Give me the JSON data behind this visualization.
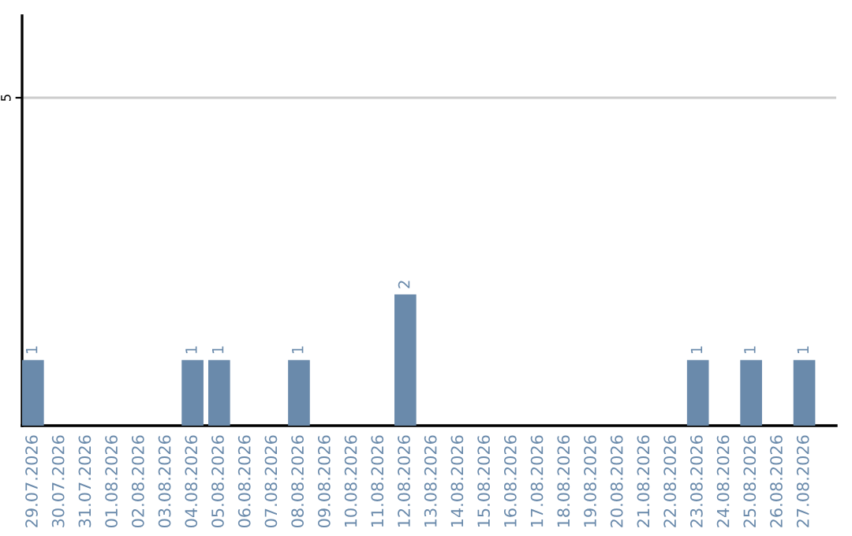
{
  "chart_data": {
    "type": "bar",
    "categories": [
      "29.07.2026",
      "30.07.2026",
      "31.07.2026",
      "01.08.2026",
      "02.08.2026",
      "03.08.2026",
      "04.08.2026",
      "05.08.2026",
      "06.08.2026",
      "07.08.2026",
      "08.08.2026",
      "09.08.2026",
      "10.08.2026",
      "11.08.2026",
      "12.08.2026",
      "13.08.2026",
      "14.08.2026",
      "15.08.2026",
      "16.08.2026",
      "17.08.2026",
      "18.08.2026",
      "19.08.2026",
      "20.08.2026",
      "21.08.2026",
      "22.08.2026",
      "23.08.2026",
      "24.08.2026",
      "25.08.2026",
      "26.08.2026",
      "27.08.2026"
    ],
    "values": [
      1,
      0,
      0,
      0,
      0,
      0,
      1,
      1,
      0,
      0,
      1,
      0,
      0,
      0,
      2,
      0,
      0,
      0,
      0,
      0,
      0,
      0,
      0,
      0,
      0,
      1,
      0,
      1,
      0,
      1
    ],
    "value_labels": [
      "1",
      null,
      null,
      null,
      null,
      null,
      "1",
      "1",
      null,
      null,
      "1",
      null,
      null,
      null,
      "2",
      null,
      null,
      null,
      null,
      null,
      null,
      null,
      null,
      null,
      null,
      "1",
      null,
      "1",
      null,
      "1"
    ],
    "color": "#6a8aab",
    "ylim": [
      0,
      6.25
    ],
    "yticks": [
      5
    ],
    "grid": "y"
  }
}
